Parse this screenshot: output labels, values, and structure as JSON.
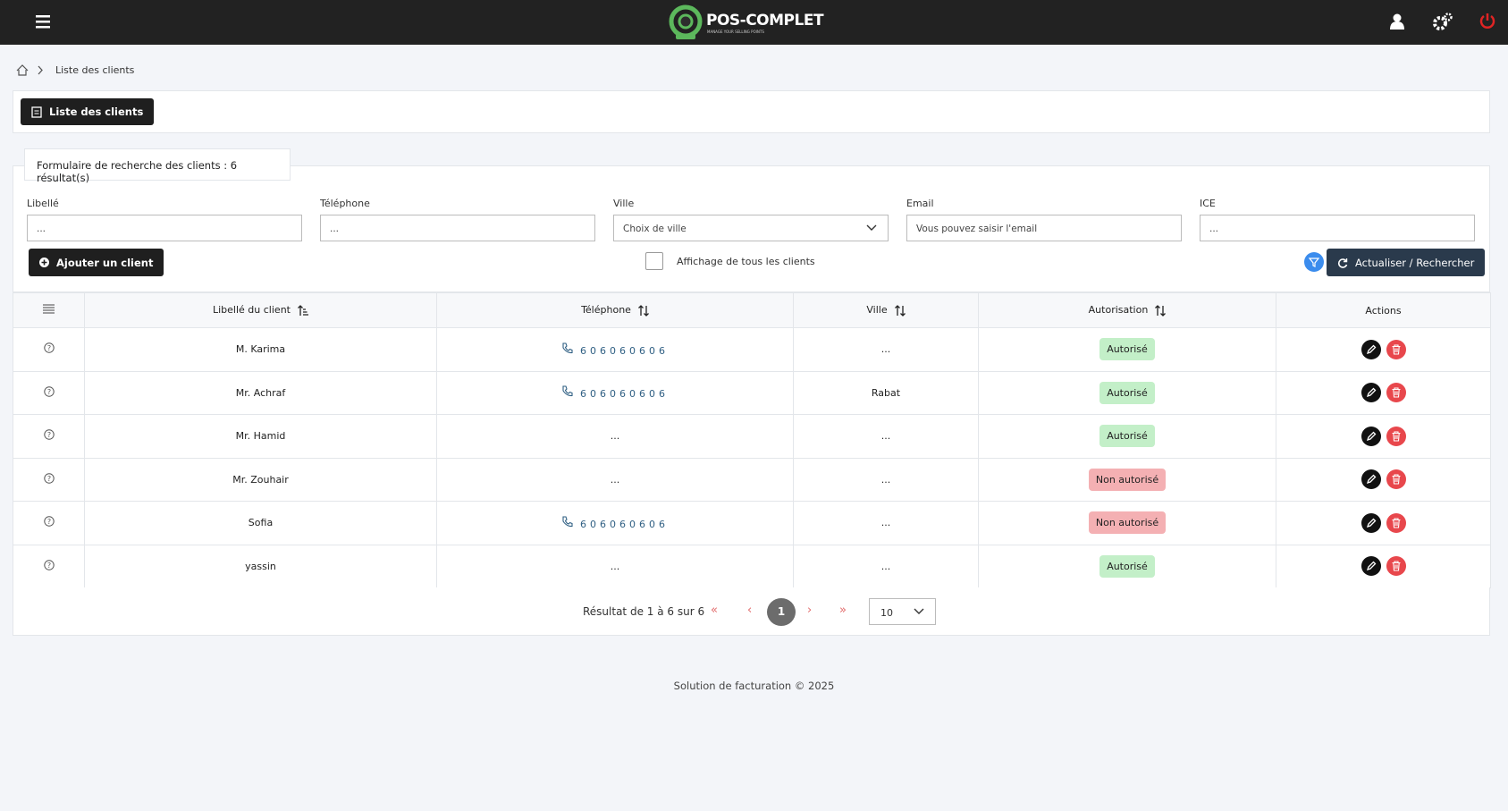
{
  "header": {
    "logo": "POS-COMPLET",
    "tagline": "MANAGE YOUR SELLING POINTS"
  },
  "breadcrumb": {
    "current": "Liste des clients"
  },
  "page_button": "Liste des clients",
  "search": {
    "title": "Formulaire de recherche des clients : 6 résultat(s)",
    "fields": [
      {
        "label": "Libellé",
        "placeholder": "..."
      },
      {
        "label": "Téléphone",
        "placeholder": "..."
      },
      {
        "label": "Ville",
        "placeholder": "Choix de ville"
      },
      {
        "label": "Email",
        "placeholder": "Vous pouvez saisir l'email"
      },
      {
        "label": "ICE",
        "placeholder": "..."
      }
    ],
    "add_button": "Ajouter un client",
    "show_all": "Affichage de tous les clients",
    "submit": "Actualiser / Rechercher"
  },
  "table": {
    "columns": [
      "Libellé du client",
      "Téléphone",
      "Ville",
      "Autorisation",
      "Actions"
    ],
    "rows": [
      {
        "name": "M. Karima",
        "phone": "606060606",
        "city": "...",
        "status": "Autorisé",
        "status_color": "#c3efc8"
      },
      {
        "name": "Mr. Achraf",
        "phone": "606060606",
        "city": "Rabat",
        "status": "Autorisé",
        "status_color": "#c3efc8"
      },
      {
        "name": "Mr. Hamid",
        "phone": "...",
        "city": "...",
        "status": "Autorisé",
        "status_color": "#c3efc8"
      },
      {
        "name": "Mr. Zouhair",
        "phone": "...",
        "city": "...",
        "status": "Non autorisé",
        "status_color": "#f4b0b3"
      },
      {
        "name": "Sofia",
        "phone": "606060606",
        "city": "...",
        "status": "Non autorisé",
        "status_color": "#f4b0b3"
      },
      {
        "name": "yassin",
        "phone": "...",
        "city": "...",
        "status": "Autorisé",
        "status_color": "#c3efc8"
      }
    ]
  },
  "pagination": {
    "summary": "Résultat de 1 à 6 sur 6",
    "page": "1",
    "per_page": "10"
  },
  "footer": "Solution de facturation © 2025"
}
